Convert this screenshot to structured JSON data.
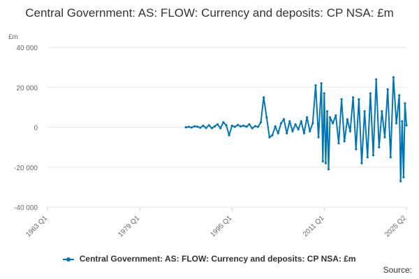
{
  "chart_data": {
    "type": "line",
    "title": "Central Government: AS: FLOW: Currency and deposits: CP NSA: £m",
    "unit_label": "£m",
    "xlabel": "",
    "ylabel": "",
    "ylim": [
      -40000,
      40000
    ],
    "yticks": [
      40000,
      20000,
      0,
      -20000,
      -40000
    ],
    "ytick_labels": [
      "40 000",
      "20 000",
      "0",
      "-20 000",
      "-40 000"
    ],
    "xticks": [
      "1963 Q1",
      "1979 Q1",
      "1995 Q1",
      "2011 Q1",
      "2025 Q2"
    ],
    "xlim": [
      "1963 Q1",
      "2025 Q2"
    ],
    "grid": "horizontal",
    "legend": "bottom",
    "source_label": "Source:",
    "series": [
      {
        "name": "Central Government: AS: FLOW: Currency and deposits: CP NSA: £m",
        "color": "#0076b6",
        "points": [
          [
            "1987 Q1",
            0
          ],
          [
            "1987 Q3",
            200
          ],
          [
            "1988 Q1",
            -100
          ],
          [
            "1988 Q3",
            500
          ],
          [
            "1989 Q1",
            300
          ],
          [
            "1989 Q3",
            -200
          ],
          [
            "1990 Q1",
            800
          ],
          [
            "1990 Q3",
            -300
          ],
          [
            "1991 Q1",
            1000
          ],
          [
            "1991 Q3",
            -400
          ],
          [
            "1992 Q1",
            500
          ],
          [
            "1992 Q3",
            1500
          ],
          [
            "1993 Q1",
            -500
          ],
          [
            "1993 Q3",
            2500
          ],
          [
            "1994 Q1",
            1000
          ],
          [
            "1994 Q3",
            -4000
          ],
          [
            "1995 Q1",
            800
          ],
          [
            "1995 Q3",
            200
          ],
          [
            "1996 Q1",
            1200
          ],
          [
            "1996 Q3",
            500
          ],
          [
            "1997 Q1",
            800
          ],
          [
            "1997 Q3",
            300
          ],
          [
            "1998 Q1",
            1500
          ],
          [
            "1998 Q3",
            -500
          ],
          [
            "1999 Q1",
            600
          ],
          [
            "1999 Q3",
            200
          ],
          [
            "2000 Q1",
            2500
          ],
          [
            "2000 Q3",
            15000
          ],
          [
            "2001 Q1",
            5000
          ],
          [
            "2001 Q3",
            -5000
          ],
          [
            "2002 Q1",
            -4000
          ],
          [
            "2002 Q3",
            500
          ],
          [
            "2003 Q1",
            -3000
          ],
          [
            "2003 Q3",
            2000
          ],
          [
            "2004 Q1",
            4000
          ],
          [
            "2004 Q3",
            -3000
          ],
          [
            "2005 Q1",
            3000
          ],
          [
            "2005 Q3",
            -2000
          ],
          [
            "2006 Q1",
            1500
          ],
          [
            "2006 Q3",
            -1000
          ],
          [
            "2007 Q1",
            3000
          ],
          [
            "2007 Q3",
            -3000
          ],
          [
            "2008 Q1",
            5000
          ],
          [
            "2008 Q3",
            -2000
          ],
          [
            "2009 Q1",
            2000
          ],
          [
            "2009 Q3",
            21000
          ],
          [
            "2010 Q1",
            -5000
          ],
          [
            "2010 Q3",
            22000
          ],
          [
            "2010 Q4",
            -17000
          ],
          [
            "2011 Q1",
            17000
          ],
          [
            "2011 Q2",
            -18000
          ],
          [
            "2011 Q3",
            8000
          ],
          [
            "2011 Q4",
            -21000
          ],
          [
            "2012 Q1",
            5000
          ],
          [
            "2012 Q3",
            2000
          ],
          [
            "2013 Q1",
            6000
          ],
          [
            "2013 Q3",
            -8000
          ],
          [
            "2014 Q1",
            14000
          ],
          [
            "2014 Q3",
            -7000
          ],
          [
            "2015 Q1",
            4000
          ],
          [
            "2015 Q3",
            -2000
          ],
          [
            "2016 Q1",
            15000
          ],
          [
            "2016 Q3",
            -11000
          ],
          [
            "2017 Q1",
            14000
          ],
          [
            "2017 Q3",
            -18000
          ],
          [
            "2018 Q1",
            8000
          ],
          [
            "2018 Q3",
            -15000
          ],
          [
            "2019 Q1",
            17000
          ],
          [
            "2019 Q3",
            -14000
          ],
          [
            "2020 Q1",
            24000
          ],
          [
            "2020 Q3",
            -10000
          ],
          [
            "2021 Q1",
            8000
          ],
          [
            "2021 Q3",
            -5000
          ],
          [
            "2022 Q1",
            19000
          ],
          [
            "2022 Q3",
            -15000
          ],
          [
            "2023 Q1",
            25000
          ],
          [
            "2023 Q3",
            2000
          ],
          [
            "2024 Q1",
            16000
          ],
          [
            "2024 Q2",
            -27000
          ],
          [
            "2024 Q3",
            3000
          ],
          [
            "2024 Q4",
            -25000
          ],
          [
            "2025 Q1",
            12000
          ],
          [
            "2025 Q2",
            1000
          ]
        ]
      }
    ]
  }
}
